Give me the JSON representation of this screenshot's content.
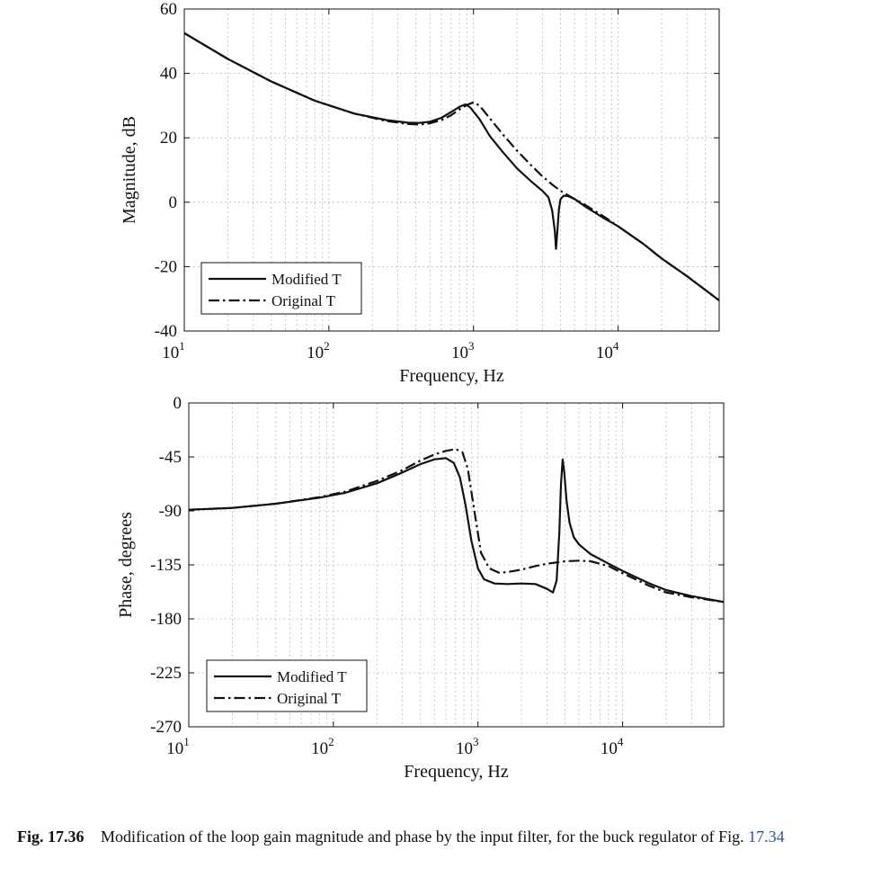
{
  "caption": {
    "figure_number": "Fig. 17.36",
    "text_before_ref": "Modification of the loop gain magnitude and phase by the input filter, for the buck regulator of Fig.",
    "ref": "17.34"
  },
  "chart_data": [
    {
      "type": "line",
      "xlabel": "Frequency, Hz",
      "ylabel": "Magnitude, dB",
      "xscale": "log",
      "xlim": [
        10,
        50000
      ],
      "ylim": [
        -40,
        60
      ],
      "xticks": [
        10,
        100,
        1000,
        10000
      ],
      "xtick_labels": [
        [
          "10",
          "1"
        ],
        [
          "10",
          "2"
        ],
        [
          "10",
          "3"
        ],
        [
          "10",
          "4"
        ]
      ],
      "yticks": [
        -40,
        -20,
        0,
        20,
        40,
        60
      ],
      "ytick_labels": [
        "-40",
        "-20",
        "0",
        "20",
        "40",
        "60"
      ],
      "grid": true,
      "legend": "bottom-left",
      "series": [
        {
          "name": "Modified T",
          "style": "solid",
          "x": [
            10,
            20,
            40,
            80,
            150,
            250,
            350,
            420,
            500,
            600,
            700,
            800,
            880,
            950,
            1100,
            1300,
            1600,
            2000,
            2500,
            3000,
            3300,
            3500,
            3650,
            3720,
            3800,
            3900,
            4000,
            4200,
            4500,
            5000,
            6000,
            8000,
            10000,
            15000,
            20000,
            30000,
            50000
          ],
          "y": [
            52.5,
            44.5,
            37.5,
            31.5,
            27.5,
            25.5,
            24.7,
            24.6,
            25.0,
            26.2,
            28.0,
            29.6,
            30.4,
            29.4,
            25.8,
            20.5,
            15.5,
            10.5,
            6.5,
            3.5,
            1.5,
            -2.5,
            -9.0,
            -14.5,
            -9.0,
            -2.0,
            1.0,
            2.0,
            1.9,
            1.0,
            -1.5,
            -5.0,
            -7.5,
            -13.0,
            -17.5,
            -23.0,
            -30.5
          ]
        },
        {
          "name": "Original T",
          "style": "dashdot",
          "x": [
            10,
            20,
            40,
            80,
            150,
            250,
            350,
            420,
            500,
            600,
            700,
            800,
            900,
            1000,
            1100,
            1300,
            1600,
            2000,
            2500,
            3000,
            3500,
            4000,
            5000,
            6000,
            8000,
            10000,
            15000,
            20000,
            30000,
            50000
          ],
          "y": [
            52.5,
            44.5,
            37.5,
            31.5,
            27.5,
            25.2,
            24.3,
            24.1,
            24.5,
            25.5,
            27.0,
            28.8,
            30.2,
            31.0,
            30.0,
            26.0,
            21.0,
            16.0,
            11.5,
            8.0,
            5.5,
            3.5,
            1.0,
            -1.0,
            -4.5,
            -7.5,
            -13.0,
            -17.5,
            -23.0,
            -30.5
          ]
        }
      ]
    },
    {
      "type": "line",
      "xlabel": "Frequency, Hz",
      "ylabel": "Phase, degrees",
      "xscale": "log",
      "xlim": [
        10,
        50000
      ],
      "ylim": [
        -270,
        0
      ],
      "xticks": [
        10,
        100,
        1000,
        10000
      ],
      "xtick_labels": [
        [
          "10",
          "1"
        ],
        [
          "10",
          "2"
        ],
        [
          "10",
          "3"
        ],
        [
          "10",
          "4"
        ]
      ],
      "yticks": [
        -270,
        -225,
        -180,
        -135,
        -90,
        -45,
        0
      ],
      "ytick_labels": [
        "-270",
        "-225",
        "-180",
        "-135",
        "-90",
        "-45",
        "0"
      ],
      "grid": true,
      "legend": "bottom-left",
      "series": [
        {
          "name": "Modified T",
          "style": "solid",
          "x": [
            10,
            20,
            40,
            80,
            120,
            200,
            300,
            400,
            500,
            600,
            680,
            750,
            820,
            900,
            1000,
            1100,
            1300,
            1600,
            2000,
            2500,
            3000,
            3300,
            3500,
            3650,
            3750,
            3850,
            3950,
            4100,
            4300,
            4600,
            5000,
            6000,
            8000,
            10000,
            15000,
            20000,
            30000,
            50000
          ],
          "y": [
            -89,
            -87.5,
            -84,
            -79,
            -75,
            -67,
            -58,
            -51,
            -47,
            -46,
            -50,
            -62,
            -85,
            -115,
            -138,
            -147,
            -150.5,
            -151,
            -150.5,
            -151,
            -155,
            -158,
            -148,
            -108,
            -68,
            -47,
            -58,
            -82,
            -100,
            -112,
            -118,
            -126,
            -134,
            -140,
            -150,
            -156,
            -161,
            -166
          ]
        },
        {
          "name": "Original T",
          "style": "dashdot",
          "x": [
            10,
            20,
            40,
            80,
            120,
            200,
            300,
            400,
            500,
            600,
            700,
            780,
            850,
            950,
            1050,
            1200,
            1400,
            1600,
            2000,
            2500,
            3000,
            4000,
            5000,
            6000,
            8000,
            10000,
            15000,
            20000,
            30000,
            50000
          ],
          "y": [
            -89,
            -87.5,
            -84,
            -78.5,
            -74,
            -65,
            -56,
            -48,
            -43,
            -40,
            -38.5,
            -41,
            -55,
            -92,
            -125,
            -138,
            -141.5,
            -141,
            -139,
            -136,
            -134,
            -132,
            -131.5,
            -132,
            -136,
            -142,
            -152,
            -158,
            -162,
            -166
          ]
        }
      ]
    }
  ]
}
